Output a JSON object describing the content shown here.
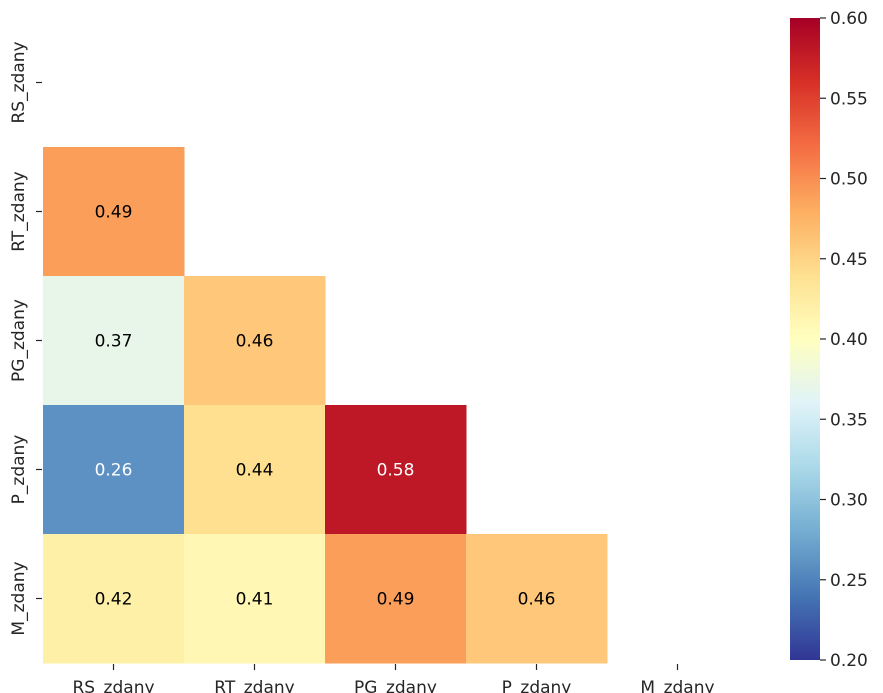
{
  "chart_data": {
    "type": "heatmap",
    "mask": "upper-triangle-including-diagonal",
    "x_labels": [
      "RS_zdany",
      "RT_zdany",
      "PG_zdany",
      "P_zdany",
      "M_zdany"
    ],
    "y_labels": [
      "RS_zdany",
      "RT_zdany",
      "PG_zdany",
      "P_zdany",
      "M_zdany"
    ],
    "cells": [
      {
        "row": 1,
        "col": 0,
        "value": 0.49,
        "label": "0.49"
      },
      {
        "row": 2,
        "col": 0,
        "value": 0.37,
        "label": "0.37"
      },
      {
        "row": 2,
        "col": 1,
        "value": 0.46,
        "label": "0.46"
      },
      {
        "row": 3,
        "col": 0,
        "value": 0.26,
        "label": "0.26"
      },
      {
        "row": 3,
        "col": 1,
        "value": 0.44,
        "label": "0.44"
      },
      {
        "row": 3,
        "col": 2,
        "value": 0.58,
        "label": "0.58"
      },
      {
        "row": 4,
        "col": 0,
        "value": 0.42,
        "label": "0.42"
      },
      {
        "row": 4,
        "col": 1,
        "value": 0.41,
        "label": "0.41"
      },
      {
        "row": 4,
        "col": 2,
        "value": 0.49,
        "label": "0.49"
      },
      {
        "row": 4,
        "col": 3,
        "value": 0.46,
        "label": "0.46"
      }
    ],
    "colorbar": {
      "min": 0.2,
      "max": 0.6,
      "colormap": "RdYlBu_r",
      "ticks": [
        {
          "value": 0.2,
          "label": "0.20"
        },
        {
          "value": 0.25,
          "label": "0.25"
        },
        {
          "value": 0.3,
          "label": "0.30"
        },
        {
          "value": 0.35,
          "label": "0.35"
        },
        {
          "value": 0.4,
          "label": "0.40"
        },
        {
          "value": 0.45,
          "label": "0.45"
        },
        {
          "value": 0.5,
          "label": "0.50"
        },
        {
          "value": 0.55,
          "label": "0.55"
        },
        {
          "value": 0.6,
          "label": "0.60"
        }
      ]
    },
    "title": "",
    "xlabel": "",
    "ylabel": "",
    "grid": false
  },
  "colors": {
    "background": "#ffffff",
    "axis_text": "#262626",
    "tick_line": "#262626",
    "cell_text_dark": "#000000",
    "cell_text_light": "#ffffff",
    "colormap_stops": [
      "#313695",
      "#4575b4",
      "#74add1",
      "#abd9e9",
      "#e0f3f8",
      "#ffffbf",
      "#fee090",
      "#fdae61",
      "#f46d43",
      "#d73027",
      "#a50026"
    ]
  }
}
